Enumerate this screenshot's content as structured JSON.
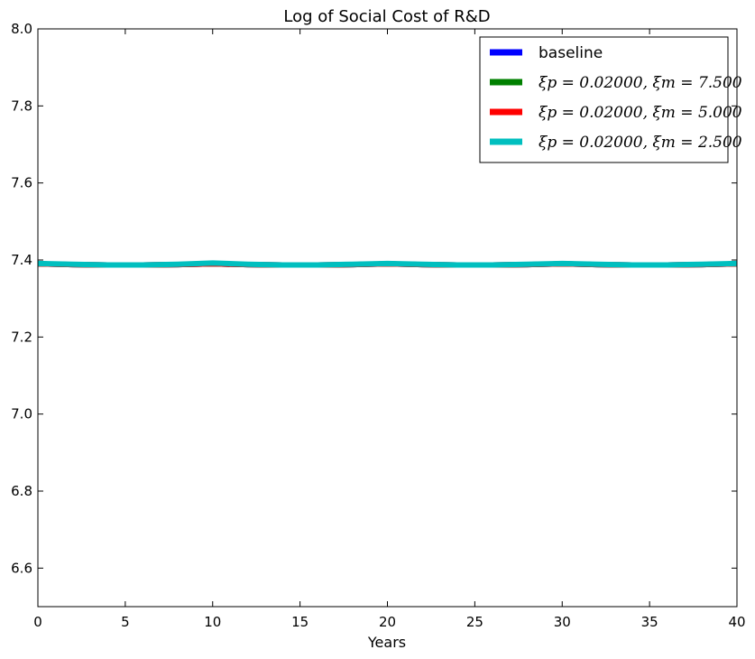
{
  "chart_data": {
    "type": "line",
    "title": "Log of Social Cost of R&D",
    "xlabel": "Years",
    "ylabel": "",
    "xlim": [
      0,
      40
    ],
    "ylim": [
      6.5,
      8.0
    ],
    "xticks": [
      "0",
      "5",
      "10",
      "15",
      "20",
      "25",
      "30",
      "35",
      "40"
    ],
    "yticks": [
      "6.6",
      "6.8",
      "7.0",
      "7.2",
      "7.4",
      "7.6",
      "7.8",
      "8.0"
    ],
    "grid": false,
    "legend_position": "top-right",
    "x": [
      0,
      2,
      4,
      6,
      8,
      10,
      12,
      14,
      16,
      18,
      20,
      22,
      24,
      26,
      28,
      30,
      32,
      34,
      36,
      38,
      40
    ],
    "series": [
      {
        "name": "baseline",
        "color": "#0000ff",
        "values": [
          7.39,
          7.388,
          7.387,
          7.387,
          7.388,
          7.39,
          7.388,
          7.387,
          7.387,
          7.388,
          7.39,
          7.388,
          7.387,
          7.387,
          7.388,
          7.39,
          7.388,
          7.387,
          7.387,
          7.388,
          7.39
        ]
      },
      {
        "name": "ξp = 0.02000, ξm = 7.500",
        "color": "#008000",
        "values": [
          7.39,
          7.388,
          7.387,
          7.387,
          7.388,
          7.39,
          7.388,
          7.387,
          7.387,
          7.388,
          7.39,
          7.388,
          7.387,
          7.387,
          7.388,
          7.39,
          7.388,
          7.387,
          7.387,
          7.388,
          7.39
        ]
      },
      {
        "name": "ξp = 0.02000, ξm = 5.000",
        "color": "#ff0000",
        "values": [
          7.39,
          7.388,
          7.387,
          7.387,
          7.388,
          7.39,
          7.388,
          7.387,
          7.387,
          7.388,
          7.39,
          7.388,
          7.387,
          7.387,
          7.388,
          7.39,
          7.388,
          7.387,
          7.387,
          7.388,
          7.39
        ]
      },
      {
        "name": "ξp = 0.02000, ξm = 2.500",
        "color": "#00bfbf",
        "values": [
          7.391,
          7.389,
          7.387,
          7.387,
          7.389,
          7.392,
          7.389,
          7.387,
          7.387,
          7.389,
          7.391,
          7.389,
          7.387,
          7.387,
          7.389,
          7.391,
          7.389,
          7.387,
          7.387,
          7.389,
          7.391
        ]
      }
    ]
  }
}
